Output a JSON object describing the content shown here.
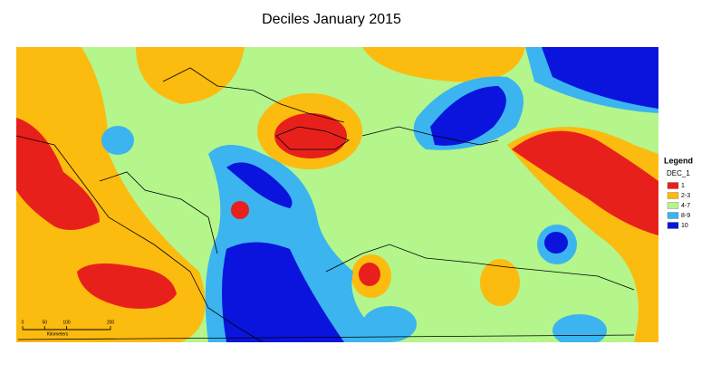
{
  "title": "Deciles January 2015",
  "legend": {
    "title": "Legend",
    "field": "DEC_1",
    "items": [
      {
        "label": "1",
        "color": "#e8201c"
      },
      {
        "label": "2-3",
        "color": "#fcbb0f"
      },
      {
        "label": "4-7",
        "color": "#b4f58c"
      },
      {
        "label": "8-9",
        "color": "#3bb4f0"
      },
      {
        "label": "10",
        "color": "#0a14dc"
      }
    ]
  },
  "scale_bar": {
    "ticks": [
      0,
      50,
      100,
      200
    ],
    "unit": "Kilometers"
  }
}
